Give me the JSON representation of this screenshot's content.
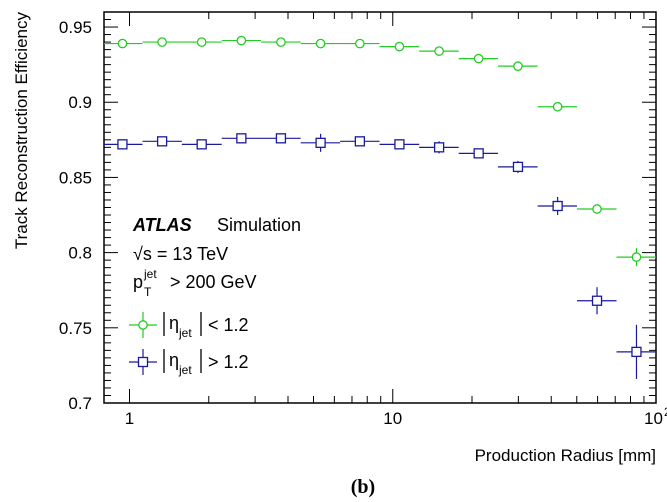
{
  "chart_data": {
    "type": "scatter",
    "xscale": "log",
    "xlim": [
      0.8,
      100
    ],
    "ylim": [
      0.7,
      0.96
    ],
    "xlabel": "Production Radius [mm]",
    "ylabel": "Track Reconstruction Efficiency",
    "x_ticks": [
      {
        "value": 1,
        "label": "1"
      },
      {
        "value": 10,
        "label": "10"
      },
      {
        "value": 100,
        "label": "10",
        "sup": "2"
      }
    ],
    "y_ticks": [
      0.7,
      0.75,
      0.8,
      0.85,
      0.9,
      0.95
    ],
    "y_tick_labels": [
      "0.7",
      "0.75",
      "0.8",
      "0.85",
      "0.9",
      "0.95"
    ],
    "panel_label": "(b)",
    "annotations": {
      "experiment": "ATLAS",
      "status": "Simulation",
      "energy": "√s = 13 TeV",
      "pt_cut_base": "p",
      "pt_cut_sup": "jet",
      "pt_cut_sub": "T",
      "pt_cut_rest": "> 200 GeV"
    },
    "legend_position": "bottom-left",
    "series": [
      {
        "name_sym": "η",
        "name_sub": "jet",
        "name_cut": "< 1.2",
        "color": "#22cc22",
        "marker": "circle",
        "points": [
          {
            "x": 0.94,
            "y": 0.939,
            "xlo": 0.8,
            "xhi": 1.12,
            "yerr": 0.001
          },
          {
            "x": 1.33,
            "y": 0.94,
            "xlo": 1.12,
            "xhi": 1.58,
            "yerr": 0.001
          },
          {
            "x": 1.88,
            "y": 0.94,
            "xlo": 1.58,
            "xhi": 2.24,
            "yerr": 0.001
          },
          {
            "x": 2.66,
            "y": 0.941,
            "xlo": 2.24,
            "xhi": 3.16,
            "yerr": 0.001
          },
          {
            "x": 3.76,
            "y": 0.94,
            "xlo": 3.16,
            "xhi": 4.47,
            "yerr": 0.001
          },
          {
            "x": 5.32,
            "y": 0.939,
            "xlo": 4.47,
            "xhi": 6.31,
            "yerr": 0.001
          },
          {
            "x": 7.5,
            "y": 0.939,
            "xlo": 6.31,
            "xhi": 8.91,
            "yerr": 0.001
          },
          {
            "x": 10.6,
            "y": 0.937,
            "xlo": 8.91,
            "xhi": 12.6,
            "yerr": 0.001
          },
          {
            "x": 15.0,
            "y": 0.934,
            "xlo": 12.6,
            "xhi": 17.8,
            "yerr": 0.001
          },
          {
            "x": 21.2,
            "y": 0.929,
            "xlo": 17.8,
            "xhi": 25.1,
            "yerr": 0.001
          },
          {
            "x": 29.9,
            "y": 0.924,
            "xlo": 25.1,
            "xhi": 35.5,
            "yerr": 0.001
          },
          {
            "x": 42.3,
            "y": 0.897,
            "xlo": 35.5,
            "xhi": 50.1,
            "yerr": 0.001
          },
          {
            "x": 59.7,
            "y": 0.829,
            "xlo": 50.1,
            "xhi": 70.8,
            "yerr": 0.002
          },
          {
            "x": 84.3,
            "y": 0.797,
            "xlo": 70.8,
            "xhi": 100,
            "yerr": 0.006
          }
        ]
      },
      {
        "name_sym": "η",
        "name_sub": "jet",
        "name_cut": "> 1.2",
        "color": "#1a1a9c",
        "marker": "square",
        "points": [
          {
            "x": 0.94,
            "y": 0.872,
            "xlo": 0.8,
            "xhi": 1.12,
            "yerr": 0.003
          },
          {
            "x": 1.33,
            "y": 0.874,
            "xlo": 1.12,
            "xhi": 1.58,
            "yerr": 0.003
          },
          {
            "x": 1.88,
            "y": 0.872,
            "xlo": 1.58,
            "xhi": 2.24,
            "yerr": 0.003
          },
          {
            "x": 2.66,
            "y": 0.876,
            "xlo": 2.24,
            "xhi": 3.16,
            "yerr": 0.003
          },
          {
            "x": 3.76,
            "y": 0.876,
            "xlo": 3.16,
            "xhi": 4.47,
            "yerr": 0.003
          },
          {
            "x": 5.32,
            "y": 0.873,
            "xlo": 4.47,
            "xhi": 6.31,
            "yerr": 0.006
          },
          {
            "x": 7.5,
            "y": 0.874,
            "xlo": 6.31,
            "xhi": 8.91,
            "yerr": 0.003
          },
          {
            "x": 10.6,
            "y": 0.872,
            "xlo": 8.91,
            "xhi": 12.6,
            "yerr": 0.003
          },
          {
            "x": 15.0,
            "y": 0.87,
            "xlo": 12.6,
            "xhi": 17.8,
            "yerr": 0.004
          },
          {
            "x": 21.2,
            "y": 0.866,
            "xlo": 17.8,
            "xhi": 25.1,
            "yerr": 0.003
          },
          {
            "x": 29.9,
            "y": 0.857,
            "xlo": 25.1,
            "xhi": 35.5,
            "yerr": 0.004
          },
          {
            "x": 42.3,
            "y": 0.831,
            "xlo": 35.5,
            "xhi": 50.1,
            "yerr": 0.006
          },
          {
            "x": 59.7,
            "y": 0.768,
            "xlo": 50.1,
            "xhi": 70.8,
            "yerr": 0.009
          },
          {
            "x": 84.3,
            "y": 0.734,
            "xlo": 70.8,
            "xhi": 100,
            "yerr": 0.018
          }
        ]
      }
    ]
  }
}
